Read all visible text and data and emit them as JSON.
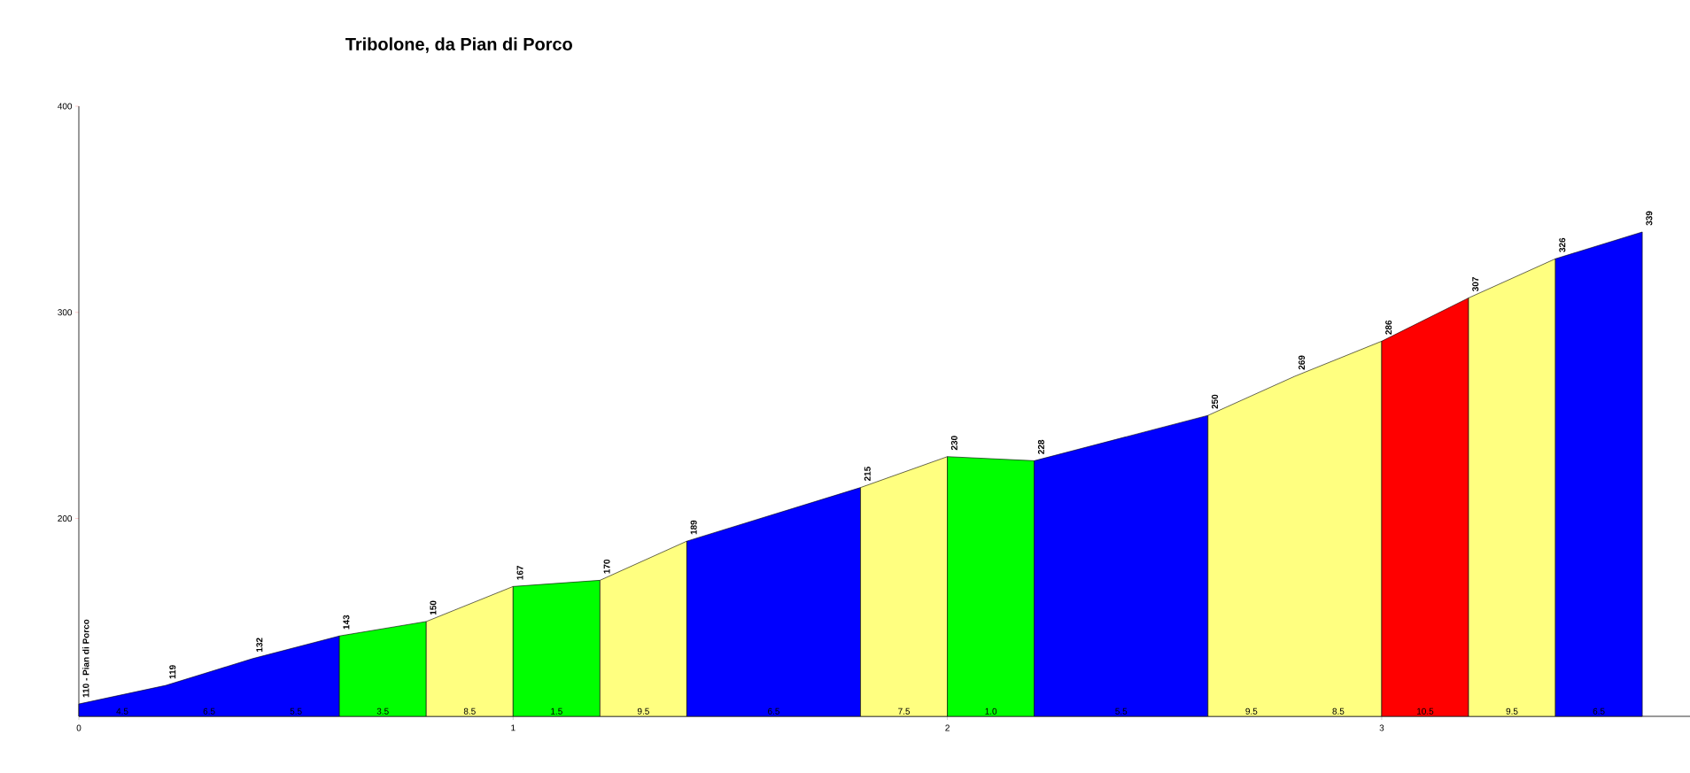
{
  "chart_data": {
    "type": "area",
    "title": "Tribolone, da Pian di Porco",
    "series": [
      {
        "color": "#0000ff",
        "x": [
          0,
          0.2,
          0.4,
          0.6
        ],
        "values": [
          110,
          119,
          132,
          143
        ],
        "value_labels": [
          "110 - Pian di Porco",
          "119",
          "132",
          null
        ]
      },
      {
        "color": "#00ff00",
        "x": [
          0.6,
          0.8
        ],
        "values": [
          143,
          150
        ],
        "value_labels": [
          "143",
          null
        ]
      },
      {
        "color": "#ffff80",
        "x": [
          0.8,
          1.0
        ],
        "values": [
          150,
          167
        ],
        "value_labels": [
          "150",
          null
        ]
      },
      {
        "color": "#00ff00",
        "x": [
          1.0,
          1.2
        ],
        "values": [
          167,
          170
        ],
        "value_labels": [
          "167",
          null
        ]
      },
      {
        "color": "#ffff80",
        "x": [
          1.2,
          1.4
        ],
        "values": [
          170,
          189
        ],
        "value_labels": [
          "170",
          null
        ]
      },
      {
        "color": "#0000ff",
        "x": [
          1.4,
          1.8
        ],
        "values": [
          189,
          215
        ],
        "value_labels": [
          "189",
          null
        ]
      },
      {
        "color": "#ffff80",
        "x": [
          1.8,
          2.0
        ],
        "values": [
          215,
          230
        ],
        "value_labels": [
          "215",
          null
        ]
      },
      {
        "color": "#00ff00",
        "x": [
          2.0,
          2.2
        ],
        "values": [
          230,
          228
        ],
        "value_labels": [
          "230",
          null
        ]
      },
      {
        "color": "#0000ff",
        "x": [
          2.2,
          2.6
        ],
        "values": [
          228,
          250
        ],
        "value_labels": [
          "228",
          null
        ]
      },
      {
        "color": "#ffff80",
        "x": [
          2.6,
          2.8,
          3.0
        ],
        "values": [
          250,
          269,
          286
        ],
        "value_labels": [
          "250",
          "269",
          null
        ]
      },
      {
        "color": "#ff0000",
        "x": [
          3.0,
          3.2
        ],
        "values": [
          286,
          307
        ],
        "value_labels": [
          "286",
          null
        ]
      },
      {
        "color": "#ffff80",
        "x": [
          3.2,
          3.4
        ],
        "values": [
          307,
          326
        ],
        "value_labels": [
          "307",
          null
        ]
      },
      {
        "color": "#0000ff",
        "x": [
          3.4,
          3.6
        ],
        "values": [
          326,
          339
        ],
        "value_labels": [
          "326",
          "339"
        ]
      }
    ],
    "annotations": [
      "4.5",
      "6.5",
      "5.5",
      "3.5",
      "8.5",
      "1.5",
      "9.5",
      "6.5",
      "7.5",
      "1.0",
      "5.5",
      "9.5",
      "8.5",
      "10.5",
      "9.5",
      "6.5"
    ],
    "xlim": [
      0,
      3.71
    ],
    "ylim": [
      104,
      400
    ],
    "xticks": [
      0,
      1,
      2,
      3
    ],
    "yticks": [
      200,
      300,
      400
    ]
  }
}
